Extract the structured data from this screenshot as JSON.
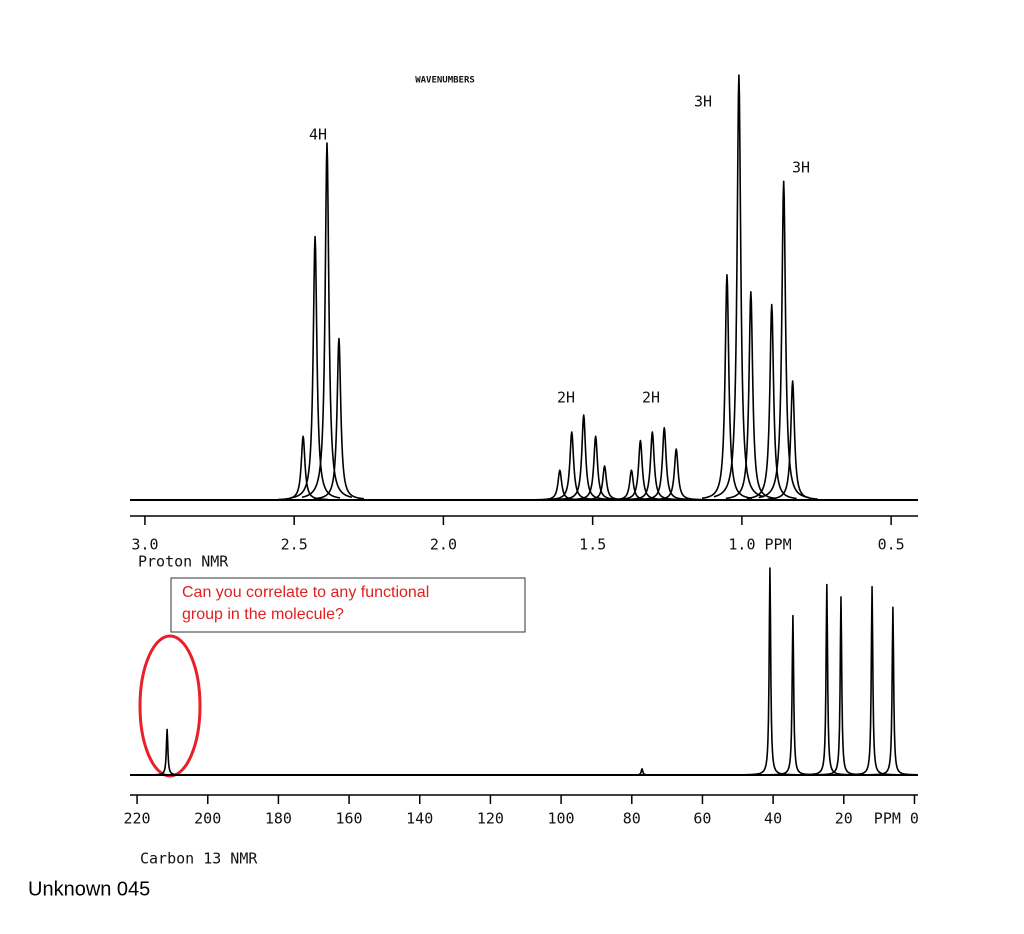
{
  "chart_data": [
    {
      "type": "spectrum",
      "title": "WAVENUMBERS",
      "x_label": "Proton NMR",
      "color": "#000000",
      "xlim": [
        3.05,
        0.41
      ],
      "xticks": [
        {
          "value": 3,
          "label": "3.0"
        },
        2.5,
        {
          "value": 2,
          "label": "2.0"
        },
        1.5,
        {
          "value": 1,
          "label": "1.0 PPM"
        },
        0.5
      ],
      "ylim": [
        0,
        100
      ],
      "x": [
        2.47,
        2.43,
        2.39,
        2.35,
        1.61,
        1.57,
        1.53,
        1.49,
        1.46,
        1.37,
        1.34,
        1.3,
        1.26,
        1.22,
        1.05,
        1.01,
        0.97,
        0.9,
        0.86,
        0.83
      ],
      "values": [
        15,
        62,
        84,
        38,
        7,
        16,
        20,
        15,
        8,
        7,
        14,
        16,
        17,
        12,
        53,
        100,
        49,
        46,
        75,
        28
      ],
      "annotations": [
        "4H",
        "3H",
        "3H",
        "2H",
        "2H"
      ]
    },
    {
      "type": "spectrum",
      "x_label": "Carbon 13 NMR",
      "color": "#000000",
      "xlim": [
        222,
        -1
      ],
      "xticks": [
        220,
        200,
        180,
        160,
        140,
        120,
        100,
        80,
        60,
        40,
        20,
        {
          "value": 0,
          "label": "PPM 0"
        }
      ],
      "ylim": [
        0,
        100
      ],
      "x": [
        211.5,
        77.1,
        40.9,
        34.4,
        24.8,
        20.8,
        12.0,
        6.1
      ],
      "values": [
        22,
        3,
        100,
        77,
        92,
        86,
        91,
        81
      ]
    }
  ],
  "callout": [
    "Can you correlate to any functional",
    "group in the molecule?"
  ],
  "caption": "Unknown 045"
}
